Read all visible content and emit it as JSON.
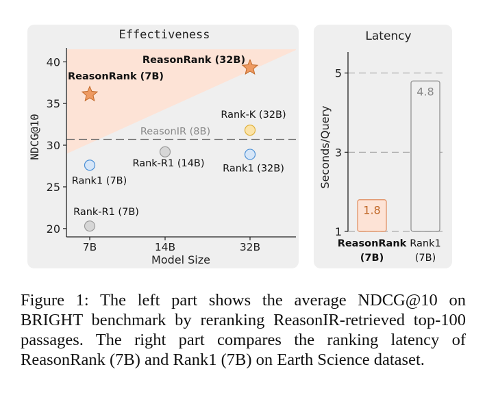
{
  "chart_data": [
    {
      "type": "scatter",
      "title": "Effectiveness",
      "xlabel": "Model Size",
      "ylabel": "NDCG@10",
      "categories": [
        "7B",
        "14B",
        "32B"
      ],
      "yticks": [
        20,
        25,
        30,
        35,
        40
      ],
      "ylim": [
        19,
        41.5
      ],
      "reference_line": {
        "label": "ReasonIR (8B)",
        "value": 30.7
      },
      "points": [
        {
          "label": "ReasonRank (7B)",
          "x": "7B",
          "y": 36.1,
          "marker": "star",
          "color": "#ee9a62"
        },
        {
          "label": "ReasonRank (32B)",
          "x": "32B",
          "y": 39.3,
          "marker": "star",
          "color": "#ee9a62"
        },
        {
          "label": "Rank-K (32B)",
          "x": "32B",
          "y": 31.8,
          "marker": "circle",
          "color": "#fbe3a8"
        },
        {
          "label": "Rank-R1 (14B)",
          "x": "14B",
          "y": 29.2,
          "marker": "circle",
          "color": "#d6d6d6"
        },
        {
          "label": "Rank1 (7B)",
          "x": "7B",
          "y": 27.6,
          "marker": "circle",
          "color": "#d6e6f8"
        },
        {
          "label": "Rank1 (32B)",
          "x": "32B",
          "y": 28.9,
          "marker": "circle",
          "color": "#d6e6f8"
        },
        {
          "label": "Rank-R1 (7B)",
          "x": "7B",
          "y": 20.3,
          "marker": "circle",
          "color": "#d6d6d6"
        }
      ],
      "highlight_region": {
        "from": {
          "x": "7B",
          "y": 29.5
        },
        "to": {
          "x": "32B",
          "y": 41.5
        },
        "color": "#fde3d6"
      }
    },
    {
      "type": "bar",
      "title": "Latency",
      "ylabel": "Seconds/Query",
      "categories": [
        "ReasonRank\n(7B)",
        "Rank1\n(7B)"
      ],
      "values": [
        1.8,
        4.8
      ],
      "value_labels": [
        "1.8",
        "4.8"
      ],
      "yticks": [
        1,
        3,
        5
      ],
      "ylim": [
        1,
        5.6
      ],
      "colors": [
        "#fde3d6",
        "#efefef"
      ]
    }
  ],
  "caption": "Figure 1: The left part shows the average NDCG@10 on BRIGHT benchmark by reranking ReasonIR-retrieved top-100 passages. The right part compares the ranking latency of ReasonRank (7B) and Rank1 (7B) on Earth Science dataset."
}
